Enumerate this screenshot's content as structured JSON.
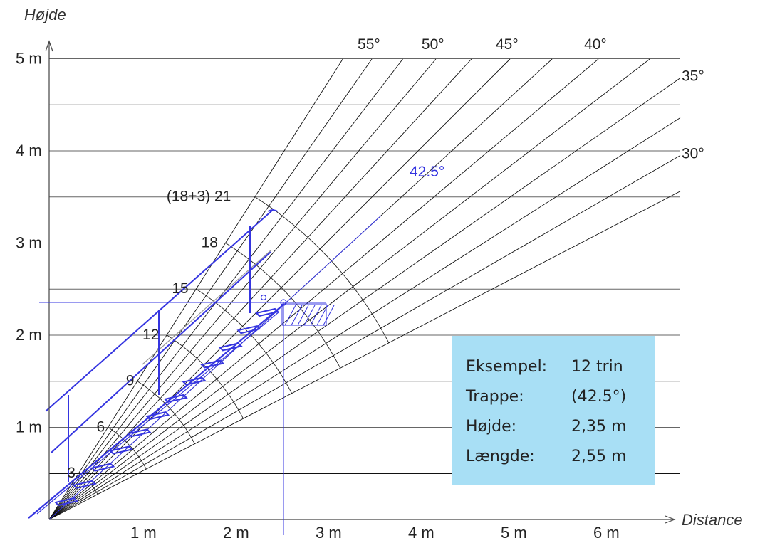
{
  "axes": {
    "y_title": "Højde",
    "x_title": "Distance",
    "y_ticks": [
      {
        "v": 1,
        "label": "1 m"
      },
      {
        "v": 2,
        "label": "2 m"
      },
      {
        "v": 3,
        "label": "3 m"
      },
      {
        "v": 4,
        "label": "4 m"
      },
      {
        "v": 5,
        "label": "5 m"
      }
    ],
    "x_ticks": [
      {
        "v": 1,
        "label": "1 m"
      },
      {
        "v": 2,
        "label": "2 m"
      },
      {
        "v": 3,
        "label": "3 m"
      },
      {
        "v": 4,
        "label": "4 m"
      },
      {
        "v": 5,
        "label": "5 m"
      },
      {
        "v": 6,
        "label": "6 m"
      }
    ],
    "gridlines_m": [
      0.5,
      1,
      1.5,
      2,
      2.5,
      3,
      3.5,
      4,
      4.5,
      5
    ]
  },
  "angles": [
    {
      "deg": 55,
      "label": "55°"
    },
    {
      "deg": 50,
      "label": "50°"
    },
    {
      "deg": 45,
      "label": "45°"
    },
    {
      "deg": 40,
      "label": "40°"
    },
    {
      "deg": 35,
      "label": "35°"
    },
    {
      "deg": 30,
      "label": "30°"
    }
  ],
  "steps": [
    {
      "n": 3,
      "label": "3"
    },
    {
      "n": 6,
      "label": "6"
    },
    {
      "n": 9,
      "label": "9"
    },
    {
      "n": 12,
      "label": "12"
    },
    {
      "n": 15,
      "label": "15"
    },
    {
      "n": 18,
      "label": "18"
    },
    {
      "n": 21,
      "label": "(18+3) 21"
    }
  ],
  "highlight": {
    "deg": 42.5,
    "label": "42.5°",
    "height_m": 2.35,
    "length_m": 2.55,
    "color": "#3535e0"
  },
  "info": {
    "rows": [
      {
        "label": "Eksempel:",
        "value": "12 trin"
      },
      {
        "label": "Trappe:",
        "value": "(42.5°)"
      },
      {
        "label": "Højde:",
        "value": "2,35 m"
      },
      {
        "label": "Længde:",
        "value": "2,55 m"
      }
    ],
    "background": "#a8dff5"
  }
}
